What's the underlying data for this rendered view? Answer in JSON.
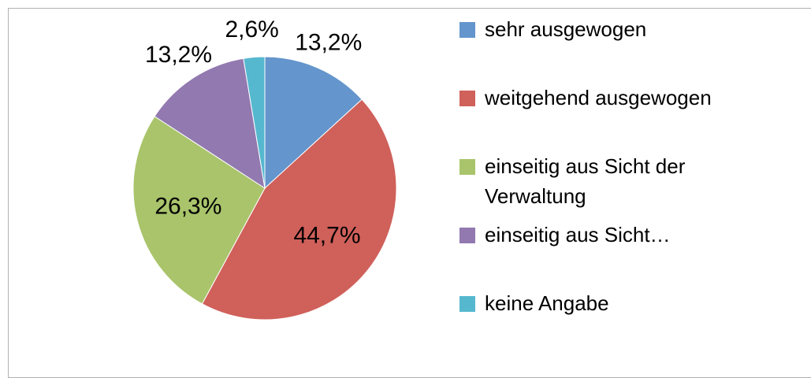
{
  "chart_data": {
    "type": "pie",
    "categories": [
      "sehr ausgewogen",
      "weitgehend ausgewogen",
      "einseitig aus Sicht der Verwaltung",
      "einseitig aus Sicht…",
      "keine Angabe"
    ],
    "values": [
      13.2,
      44.7,
      26.3,
      13.2,
      2.6
    ],
    "value_labels": [
      "13,2%",
      "44,7%",
      "26,3%",
      "13,2%",
      "2,6%"
    ],
    "colors": [
      "#6495cc",
      "#d0605a",
      "#a9c46b",
      "#9279b0",
      "#56b8cf"
    ],
    "legend": "right"
  }
}
